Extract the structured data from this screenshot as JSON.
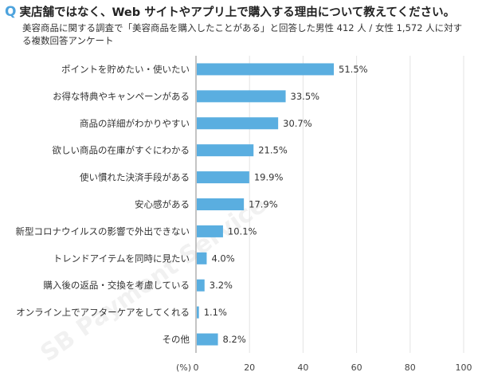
{
  "header": {
    "q_mark": "Q",
    "title": "実店舗ではなく、Web サイトやアプリ上で購入する理由について教えてください。",
    "subtitle_line1": "美容商品に関する調査で「美容商品を購入したことがある」と回答した男性 412 人 / 女性 1,572 人に対す",
    "subtitle_line2": "る複数回答アンケート"
  },
  "watermark": "SB Payment Service",
  "colors": {
    "bar": "#5aaee0",
    "accent": "#4da3dd",
    "grid": "#e3e3e3",
    "axis": "#888888"
  },
  "chart_data": {
    "type": "bar",
    "orientation": "horizontal",
    "categories": [
      "ポイントを貯めたい・使いたい",
      "お得な特典やキャンペーンがある",
      "商品の詳細がわかりやすい",
      "欲しい商品の在庫がすぐにわかる",
      "使い慣れた決済手段がある",
      "安心感がある",
      "新型コロナウイルスの影響で外出できない",
      "トレンドアイテムを同時に見たい",
      "購入後の返品・交換を考慮している",
      "オンライン上でアフターケアをしてくれる",
      "その他"
    ],
    "values": [
      51.5,
      33.5,
      30.7,
      21.5,
      19.9,
      17.9,
      10.1,
      4.0,
      3.2,
      1.1,
      8.2
    ],
    "value_labels": [
      "51.5%",
      "33.5%",
      "30.7%",
      "21.5%",
      "19.9%",
      "17.9%",
      "10.1%",
      "4.0%",
      "3.2%",
      "1.1%",
      "8.2%"
    ],
    "xlim": [
      0,
      100
    ],
    "xticks": [
      "0",
      "20",
      "40",
      "60",
      "80",
      "100"
    ],
    "xunit": "(%)",
    "grid": true
  }
}
